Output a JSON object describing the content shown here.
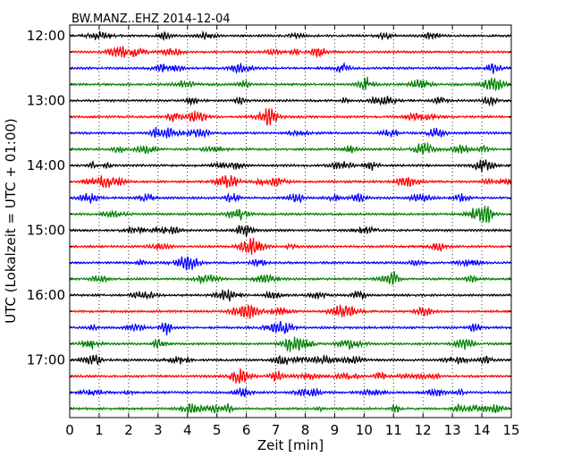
{
  "chart_data": {
    "type": "line",
    "title": "BW.MANZ..EHZ 2014-12-04",
    "xlabel": "Zeit  [min]",
    "ylabel": "UTC (Lokalzeit = UTC + 01:00)",
    "xlim": [
      0,
      15
    ],
    "x_ticks": [
      "0",
      "1",
      "2",
      "3",
      "4",
      "5",
      "6",
      "7",
      "8",
      "9",
      "10",
      "11",
      "12",
      "13",
      "14",
      "15"
    ],
    "y_ticks": [
      "12:00",
      "13:00",
      "14:00",
      "15:00",
      "16:00",
      "17:00"
    ],
    "grid": "vertical-dotted",
    "trace_colors": [
      "#000000",
      "#ff0000",
      "#0000ff",
      "#008000"
    ],
    "trace_start_times": [
      "12:00",
      "12:15",
      "12:30",
      "12:45",
      "13:00",
      "13:15",
      "13:30",
      "13:45",
      "14:00",
      "14:15",
      "14:30",
      "14:45",
      "15:00",
      "15:15",
      "15:30",
      "15:45",
      "16:00",
      "16:15",
      "16:30",
      "16:45",
      "17:00",
      "17:15",
      "17:30",
      "17:45"
    ],
    "trace_duration_min": 15
  }
}
